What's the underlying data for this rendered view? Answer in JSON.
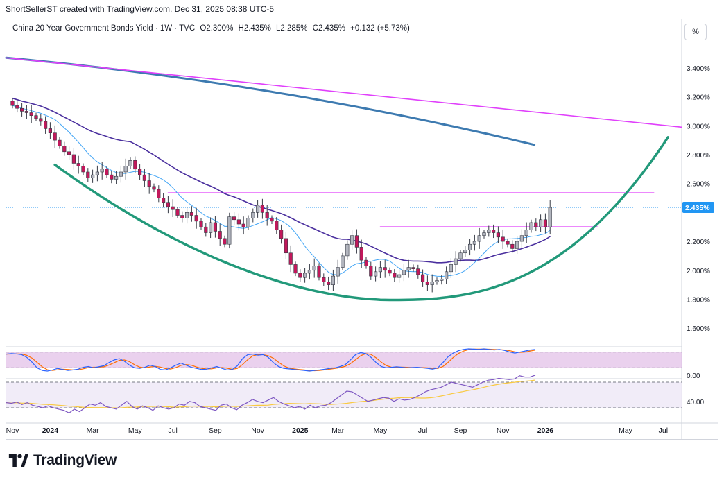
{
  "header": {
    "attribution": "ShortSellerST created with TradingView.com, Dec 31, 2025 08:38 UTC-5"
  },
  "legend": {
    "symbol": "China 20 Year Government Bonds Yield · 1W · TVC",
    "open": "O2.300%",
    "high": "H2.435%",
    "low": "L2.285%",
    "close": "C2.435%",
    "change": "+0.132 (+5.73%)"
  },
  "toolbar": {
    "scale_button": "%"
  },
  "footer": {
    "brand": "TradingView"
  },
  "colors": {
    "up": "#9598a1",
    "down": "#c2185b",
    "candle_up_fill": "#b2b5be",
    "cup_curve": "#22997a",
    "magenta": "#e040fb",
    "sma_slow": "#3d7ab0",
    "ma_dark": "#4a2f9e",
    "ma_light": "#42a5f5",
    "stoch_k": "#2962ff",
    "stoch_d": "#ff6d00",
    "rsi": "#7e57c2",
    "rsi_ma": "#f9c940",
    "last_badge": "#2196f3"
  },
  "chart_data": {
    "type": "candlestick",
    "title": "China 20 Year Government Bonds Yield",
    "interval": "1W",
    "source": "TVC",
    "y_unit": "%",
    "ylim": [
      1.5,
      3.62
    ],
    "y_ticks": [
      "3.400%",
      "3.200%",
      "3.000%",
      "2.800%",
      "2.600%",
      "2.200%",
      "2.000%",
      "1.800%",
      "1.600%"
    ],
    "y_tick_values": [
      3.4,
      3.2,
      3.0,
      2.8,
      2.6,
      2.2,
      2.0,
      1.8,
      1.6
    ],
    "last_price_label": "2.435%",
    "last_price": 2.435,
    "x_labels": [
      "Nov",
      "2024",
      "Mar",
      "May",
      "Jul",
      "Sep",
      "Nov",
      "2025",
      "Mar",
      "May",
      "Jul",
      "Sep",
      "Nov",
      "2026",
      "May",
      "Jul"
    ],
    "x_label_weeks": [
      0,
      8,
      17,
      26,
      34,
      43,
      52,
      61,
      69,
      78,
      87,
      95,
      104,
      113,
      130,
      138
    ],
    "weekly_close": [
      3.14,
      3.12,
      3.1,
      3.09,
      3.07,
      3.05,
      3.03,
      2.98,
      2.95,
      2.9,
      2.86,
      2.82,
      2.8,
      2.74,
      2.72,
      2.68,
      2.64,
      2.66,
      2.68,
      2.7,
      2.66,
      2.63,
      2.65,
      2.68,
      2.72,
      2.76,
      2.7,
      2.66,
      2.62,
      2.58,
      2.56,
      2.5,
      2.47,
      2.44,
      2.42,
      2.38,
      2.36,
      2.4,
      2.38,
      2.34,
      2.3,
      2.26,
      2.33,
      2.27,
      2.22,
      2.18,
      2.37,
      2.35,
      2.32,
      2.3,
      2.36,
      2.4,
      2.45,
      2.4,
      2.36,
      2.34,
      2.28,
      2.22,
      2.12,
      2.04,
      1.98,
      1.95,
      1.98,
      2.0,
      2.03,
      1.95,
      1.92,
      1.9,
      1.96,
      2.02,
      2.1,
      2.18,
      2.24,
      2.16,
      2.07,
      2.03,
      1.96,
      1.99,
      2.02,
      2.0,
      1.98,
      1.95,
      1.97,
      2.0,
      2.02,
      2.01,
      1.97,
      1.92,
      1.9,
      1.92,
      1.93,
      1.94,
      1.99,
      2.04,
      2.08,
      2.12,
      2.14,
      2.18,
      2.2,
      2.24,
      2.26,
      2.28,
      2.26,
      2.23,
      2.2,
      2.18,
      2.15,
      2.2,
      2.24,
      2.28,
      2.33,
      2.3,
      2.35,
      2.3,
      2.435
    ],
    "indicators": [
      {
        "type": "resistance_trendline",
        "from": [
          0,
          3.47
        ],
        "to": [
          140,
          2.99
        ]
      },
      {
        "type": "horizontal_resistance",
        "from": [
          33,
          2.535
        ],
        "to": [
          136,
          2.535
        ]
      },
      {
        "type": "horizontal_support",
        "from": [
          78,
          2.3
        ],
        "to": [
          124,
          2.3
        ]
      },
      {
        "type": "cup_curve",
        "bottom_week": 80,
        "bottom_value": 1.795,
        "start": [
          9,
          2.73
        ],
        "end": [
          139,
          2.92
        ]
      },
      {
        "type": "moving_average_slow",
        "from": [
          0,
          3.47
        ],
        "to": [
          113,
          2.86
        ]
      },
      {
        "type": "moving_average_medium",
        "period": 26
      },
      {
        "type": "moving_average_fast",
        "period": 10
      }
    ],
    "stochastic_panel": {
      "levels": [
        80,
        20
      ],
      "k_values": [
        72,
        74,
        73,
        70,
        60,
        42,
        20,
        10,
        8,
        12,
        18,
        14,
        10,
        12,
        15,
        22,
        25,
        20,
        24,
        28,
        40,
        50,
        55,
        45,
        30,
        20,
        18,
        22,
        30,
        25,
        14,
        12,
        20,
        30,
        38,
        30,
        22,
        18,
        14,
        15,
        20,
        25,
        18,
        12,
        14,
        28,
        55,
        70,
        72,
        68,
        70,
        60,
        40,
        25,
        18,
        16,
        14,
        12,
        10,
        8,
        10,
        12,
        15,
        18,
        20,
        25,
        32,
        50,
        70,
        78,
        74,
        60,
        40,
        25,
        20,
        22,
        24,
        22,
        20,
        21,
        22,
        20,
        18,
        15,
        20,
        40,
        62,
        76,
        85,
        90,
        92,
        91,
        90,
        92,
        90,
        88,
        90,
        86,
        80,
        76,
        80,
        84,
        88,
        90
      ]
    },
    "rsi_panel": {
      "levels": [
        70,
        30
      ],
      "level_label": "40.00",
      "rsi_values": [
        38,
        37,
        39,
        35,
        38,
        34,
        32,
        30,
        33,
        30,
        28,
        26,
        22,
        28,
        24,
        30,
        36,
        34,
        38,
        32,
        30,
        28,
        34,
        40,
        32,
        28,
        33,
        30,
        26,
        33,
        30,
        28,
        30,
        36,
        34,
        40,
        38,
        32,
        30,
        28,
        26,
        34,
        36,
        30,
        27,
        34,
        38,
        43,
        40,
        38,
        42,
        46,
        40,
        36,
        33,
        30,
        32,
        28,
        34,
        30,
        33,
        34,
        38,
        44,
        50,
        56,
        55,
        50,
        45,
        40,
        42,
        44,
        46,
        45,
        40,
        44,
        42,
        43,
        46,
        50,
        55,
        58,
        60,
        62,
        66,
        70,
        68,
        66,
        64,
        62,
        66,
        70,
        73,
        74,
        76,
        75,
        74,
        75,
        80,
        78,
        78,
        81
      ]
    }
  }
}
